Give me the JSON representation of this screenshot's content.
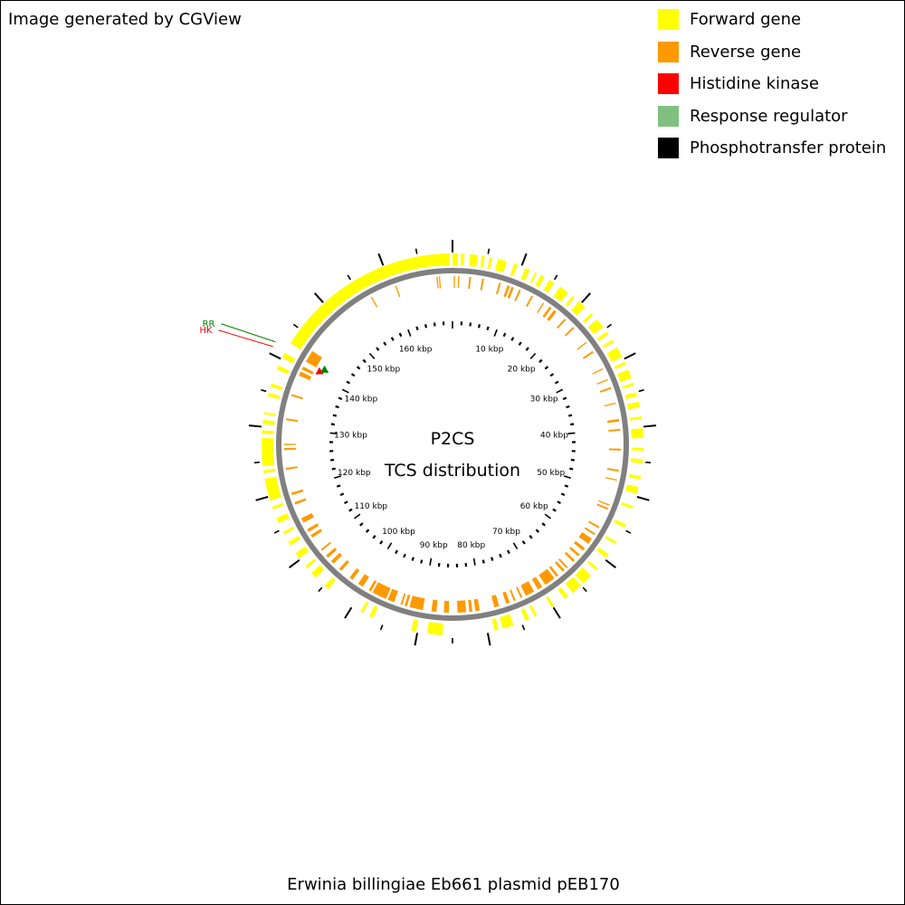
{
  "header": {
    "credit": "Image generated by CGView"
  },
  "legend": [
    {
      "label": "Forward gene",
      "color": "#ffff00"
    },
    {
      "label": "Reverse gene",
      "color": "#ff9900"
    },
    {
      "label": "Histidine kinase",
      "color": "#ff0000"
    },
    {
      "label": "Response regulator",
      "color": "#80c080"
    },
    {
      "label": "Phosphotransfer protein",
      "color": "#000000"
    }
  ],
  "map": {
    "title": "P2CS",
    "subtitle": "TCS distribution",
    "sequence_length_kbp": 170,
    "scale_labels": [
      "10 kbp",
      "20 kbp",
      "30 kbp",
      "40 kbp",
      "50 kbp",
      "60 kbp",
      "70 kbp",
      "80 kbp",
      "90 kbp",
      "100 kbp",
      "110 kbp",
      "120 kbp",
      "130 kbp",
      "140 kbp",
      "150 kbp",
      "160 kbp"
    ],
    "backbone_color": "#808080",
    "features": {
      "forward": [
        [
          0,
          0.8
        ],
        [
          1.2,
          1.7
        ],
        [
          2.5,
          3.6
        ],
        [
          4.2,
          4.6
        ],
        [
          5.3,
          5.7
        ],
        [
          6.5,
          7.8
        ],
        [
          8.9,
          9.4
        ],
        [
          10.6,
          11.3
        ],
        [
          12.1,
          12.4
        ],
        [
          13.0,
          13.6
        ],
        [
          14.4,
          15.2
        ],
        [
          16.2,
          17.6
        ],
        [
          18.4,
          18.8
        ],
        [
          19.6,
          20.8
        ],
        [
          22.0,
          22.4
        ],
        [
          23.2,
          24.6
        ],
        [
          25.4,
          25.9
        ],
        [
          26.8,
          27.2
        ],
        [
          28.1,
          29.6
        ],
        [
          30.4,
          30.8
        ],
        [
          31.6,
          32.9
        ],
        [
          33.6,
          34.0
        ],
        [
          35.0,
          35.6
        ],
        [
          36.4,
          37.2
        ],
        [
          38.5,
          38.9
        ],
        [
          40.2,
          41.6
        ],
        [
          43.0,
          43.4
        ],
        [
          44.6,
          45.2
        ],
        [
          47.0,
          47.5
        ],
        [
          48.6,
          49.6
        ],
        [
          51.4,
          51.8
        ],
        [
          54.2,
          54.7
        ],
        [
          57.0,
          57.4
        ],
        [
          59.1,
          59.7
        ],
        [
          61.6,
          62.0
        ],
        [
          63.0,
          64.6
        ],
        [
          65.0,
          66.6
        ],
        [
          67.4,
          68.0
        ],
        [
          69.8,
          70.2
        ],
        [
          72.6,
          73.0
        ],
        [
          73.8,
          74.4
        ],
        [
          76.2,
          77.8
        ],
        [
          78.4,
          79.0
        ],
        [
          86.4,
          88.6
        ],
        [
          90.2,
          90.9
        ],
        [
          96.6,
          97.2
        ],
        [
          98.2,
          98.6
        ],
        [
          104.2,
          104.9
        ],
        [
          106.6,
          107.5
        ],
        [
          108.4,
          108.8
        ],
        [
          110.2,
          111.1
        ],
        [
          112.4,
          113.0
        ],
        [
          114.2,
          114.6
        ],
        [
          116.0,
          116.8
        ],
        [
          118.1,
          118.5
        ],
        [
          119.4,
          122.6
        ],
        [
          123.4,
          123.8
        ],
        [
          124.4,
          128.4
        ],
        [
          129.0,
          129.5
        ],
        [
          130.4,
          131.0
        ],
        [
          131.8,
          132.1
        ],
        [
          134.4,
          134.9
        ],
        [
          135.8,
          136.3
        ],
        [
          138.4,
          139.0
        ],
        [
          140.2,
          141.0
        ],
        [
          142.6,
          169.6
        ]
      ],
      "reverse": [
        [
          0.2,
          0.4
        ],
        [
          0.9,
          1.1
        ],
        [
          2.7,
          3.0
        ],
        [
          4.8,
          5.1
        ],
        [
          7.6,
          7.9
        ],
        [
          9.0,
          9.4
        ],
        [
          9.7,
          10.1
        ],
        [
          11.0,
          11.3
        ],
        [
          13.2,
          13.5
        ],
        [
          15.4,
          15.6
        ],
        [
          16.6,
          17.0
        ],
        [
          17.5,
          18.0
        ],
        [
          19.7,
          20.0
        ],
        [
          21.6,
          21.9
        ],
        [
          24.8,
          25.0
        ],
        [
          26.6,
          26.9
        ],
        [
          29.8,
          30.0
        ],
        [
          31.7,
          31.9
        ],
        [
          33.1,
          33.4
        ],
        [
          35.7,
          35.9
        ],
        [
          38.4,
          38.8
        ],
        [
          40.0,
          40.3
        ],
        [
          43.2,
          43.5
        ],
        [
          46.6,
          46.9
        ],
        [
          48.2,
          48.4
        ],
        [
          52.4,
          52.6
        ],
        [
          53.0,
          53.3
        ],
        [
          56.3,
          56.6
        ],
        [
          57.6,
          57.9
        ],
        [
          58.6,
          59.6
        ],
        [
          60.5,
          61.0
        ],
        [
          61.8,
          62.2
        ],
        [
          63.0,
          63.4
        ],
        [
          64.6,
          64.9
        ],
        [
          65.3,
          65.7
        ],
        [
          66.6,
          67.0
        ],
        [
          67.4,
          69.2
        ],
        [
          69.8,
          70.6
        ],
        [
          71.3,
          72.8
        ],
        [
          73.4,
          73.7
        ],
        [
          74.6,
          74.9
        ],
        [
          75.6,
          76.2
        ],
        [
          77.4,
          78.2
        ],
        [
          80.6,
          81.3
        ],
        [
          81.8,
          82.3
        ],
        [
          82.8,
          84.2
        ],
        [
          85.6,
          86.4
        ],
        [
          87.6,
          88.4
        ],
        [
          89.8,
          92.0
        ],
        [
          92.4,
          92.8
        ],
        [
          93.2,
          93.5
        ],
        [
          94.6,
          95.7
        ],
        [
          96.0,
          98.4
        ],
        [
          98.7,
          99.1
        ],
        [
          100.2,
          101.1
        ],
        [
          102.2,
          102.8
        ],
        [
          104.5,
          105.0
        ],
        [
          106.2,
          106.8
        ],
        [
          107.5,
          108.0
        ],
        [
          109.0,
          109.3
        ],
        [
          111.6,
          112.1
        ],
        [
          112.7,
          113.2
        ],
        [
          114.4,
          115.2
        ],
        [
          117.6,
          118.0
        ],
        [
          119.2,
          119.6
        ],
        [
          123.4,
          123.7
        ],
        [
          126.6,
          126.9
        ],
        [
          127.4,
          127.6
        ],
        [
          131.4,
          131.7
        ],
        [
          135.4,
          135.7
        ],
        [
          138.9,
          139.6
        ],
        [
          140.0,
          140.5
        ],
        [
          141.4,
          143.4
        ],
        [
          156.3,
          156.5
        ],
        [
          160.6,
          160.8
        ],
        [
          167.4,
          167.6
        ],
        [
          167.8,
          168.0
        ]
      ],
      "histidine_kinase": [
        141.0
      ],
      "response_regulator": [
        141.7
      ]
    },
    "callouts": [
      {
        "label": "RR",
        "color": "#008000",
        "kbp": 141.7
      },
      {
        "label": "HK",
        "color": "#ff0000",
        "kbp": 141.0
      }
    ]
  },
  "footer": {
    "organism": "Erwinia billingiae Eb661 plasmid pEB170"
  }
}
